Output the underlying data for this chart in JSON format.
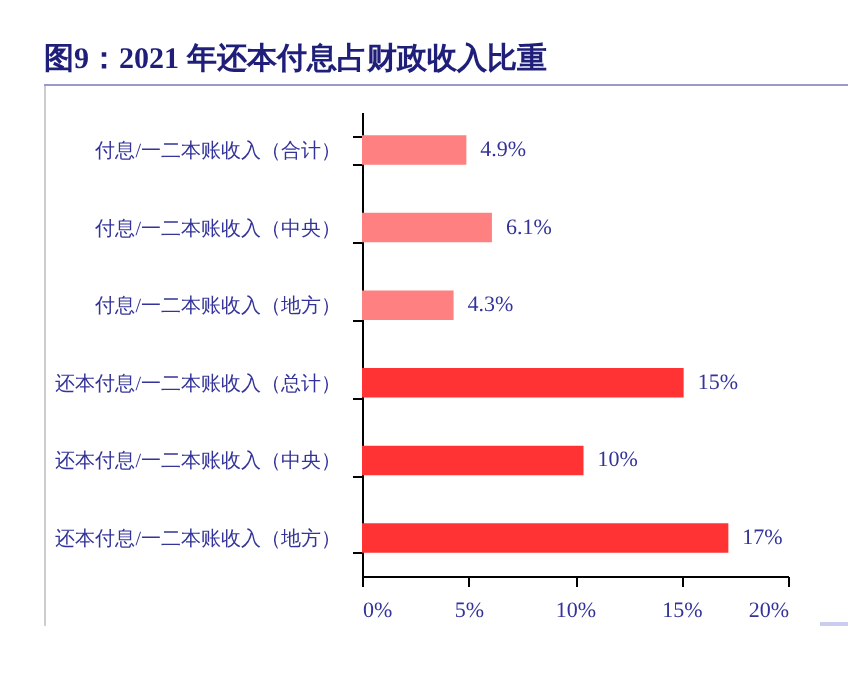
{
  "chart_data": {
    "type": "bar",
    "orientation": "horizontal",
    "title": "图9：2021 年还本付息占财政收入比重",
    "categories": [
      "付息/一二本账收入（合计）",
      "付息/一二本账收入（中央）",
      "付息/一二本账收入（地方）",
      "还本付息/一二本账收入（总计）",
      "还本付息/一二本账收入（中央）",
      "还本付息/一二本账收入（地方）"
    ],
    "values": [
      4.9,
      6.1,
      4.3,
      15.1,
      10.4,
      17.2
    ],
    "colors": [
      "#ff8080",
      "#ff8080",
      "#ff8080",
      "#ff3333",
      "#ff3333",
      "#ff3333"
    ],
    "value_labels": [
      "4.9%",
      "6.1%",
      "4.3%",
      "15%",
      "10%",
      "17%"
    ],
    "xlim": [
      0,
      20
    ],
    "xticks": [
      {
        "value": 0,
        "label": "0%"
      },
      {
        "value": 5,
        "label": "5%"
      },
      {
        "value": 10,
        "label": "10%"
      },
      {
        "value": 15,
        "label": "15%"
      },
      {
        "value": 20,
        "label": "20%"
      }
    ],
    "grid": false
  }
}
